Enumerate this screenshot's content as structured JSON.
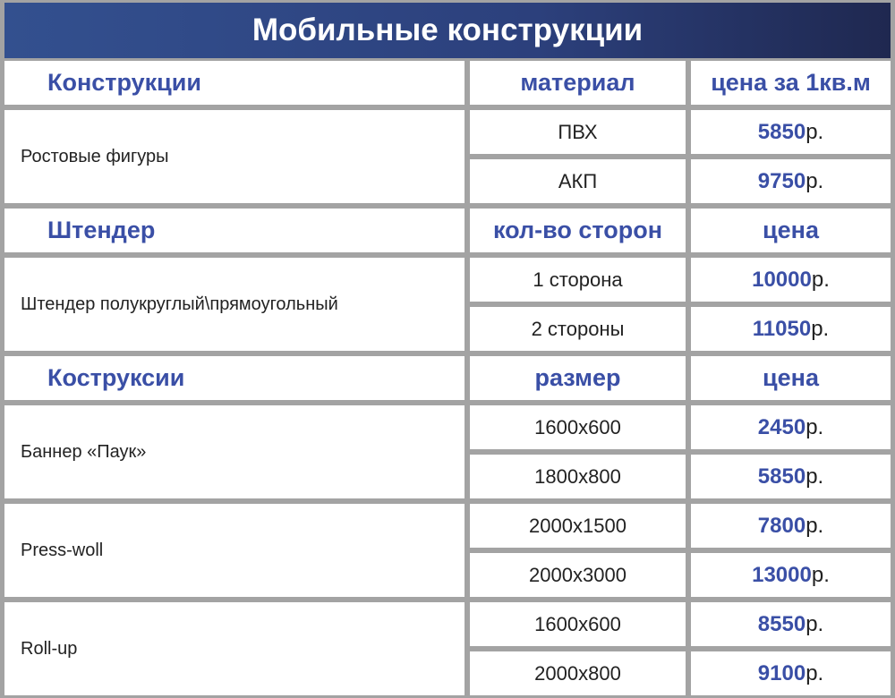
{
  "title": "Мобильные конструкции",
  "currency_suffix": "р.",
  "accent_color": "#3a4fa6",
  "sections": [
    {
      "headers": [
        "Конструкции",
        "материал",
        "цена за 1кв.м"
      ],
      "groups": [
        {
          "name": "Ростовые фигуры",
          "rows": [
            {
              "option": "ПВХ",
              "price": "5850"
            },
            {
              "option": "АКП",
              "price": "9750"
            }
          ]
        }
      ]
    },
    {
      "headers": [
        "Штендер",
        "кол-во сторон",
        "цена"
      ],
      "groups": [
        {
          "name": "Штендер полукруглый\\прямоугольный",
          "rows": [
            {
              "option": "1 сторона",
              "price": "10000"
            },
            {
              "option": "2 стороны",
              "price": "11050"
            }
          ]
        }
      ]
    },
    {
      "headers": [
        "Коструксии",
        "размер",
        "цена"
      ],
      "groups": [
        {
          "name": "Баннер «Паук»",
          "rows": [
            {
              "option": "1600x600",
              "price": "2450"
            },
            {
              "option": "1800x800",
              "price": "5850"
            }
          ]
        },
        {
          "name": "Press-woll",
          "rows": [
            {
              "option": "2000x1500",
              "price": "7800"
            },
            {
              "option": "2000x3000",
              "price": "13000"
            }
          ]
        },
        {
          "name": "Roll-up",
          "rows": [
            {
              "option": "1600x600",
              "price": "8550"
            },
            {
              "option": "2000x800",
              "price": "9100"
            }
          ]
        }
      ]
    }
  ]
}
